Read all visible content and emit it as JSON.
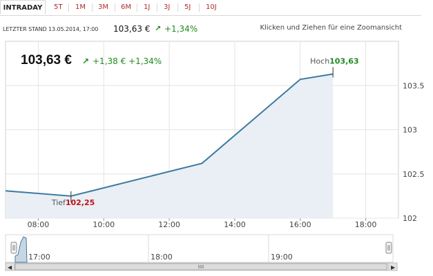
{
  "tabs": [
    {
      "label": "INTRADAY",
      "active": true
    },
    {
      "label": "5T"
    },
    {
      "label": "1M"
    },
    {
      "label": "3M"
    },
    {
      "label": "6M"
    },
    {
      "label": "1J"
    },
    {
      "label": "3J"
    },
    {
      "label": "5J"
    },
    {
      "label": "10J"
    }
  ],
  "status": {
    "label": "LETZTER STAND 13.05.2014, 17:00",
    "price": "103,63 €",
    "change": "+1,34%"
  },
  "zoom_hint": "Klicken und Ziehen für eine Zoomansicht",
  "header": {
    "price": "103,63 €",
    "change": "+1,38 € +1,34%"
  },
  "annotations": {
    "high_label": "Hoch",
    "high_value": "103,63",
    "low_label": "Tief",
    "low_value": "102,25"
  },
  "colors": {
    "line": "#3d7aa0",
    "area": "#e9eff4",
    "positive": "#1e8a1e",
    "negative": "#c0101a"
  },
  "chart_data": {
    "type": "area",
    "x": [
      "07:00",
      "09:00",
      "13:00",
      "16:00",
      "17:00"
    ],
    "values": [
      102.31,
      102.25,
      102.62,
      103.57,
      103.63
    ],
    "x_range": [
      "07:00",
      "19:00"
    ],
    "x_ticks": [
      "08:00",
      "10:00",
      "12:00",
      "14:00",
      "16:00",
      "18:00"
    ],
    "y_ticks": [
      102,
      102.5,
      103,
      103.5
    ],
    "y_tick_labels": [
      "102",
      "102.5",
      "103",
      "103.5"
    ],
    "ylim": [
      102,
      104
    ],
    "grid": true
  },
  "navigator": {
    "labels": [
      "17:00",
      "18:00",
      "19:00"
    ]
  }
}
